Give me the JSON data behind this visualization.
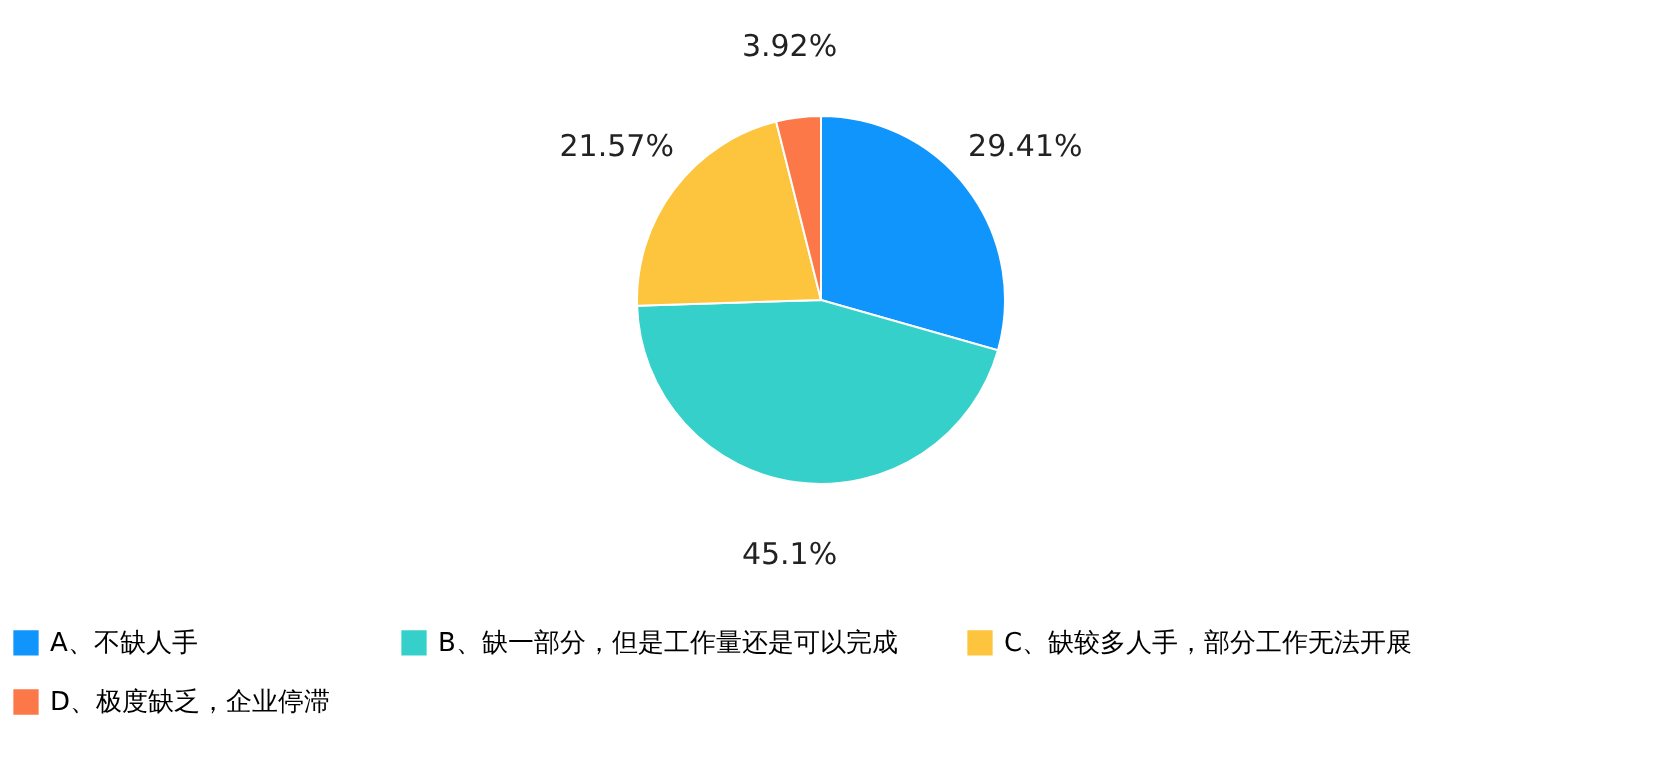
{
  "chart_data": {
    "type": "pie",
    "categories": [
      "A、不缺人手",
      "B、缺一部分，但是工作量还是可以完成",
      "C、缺较多人手，部分工作无法开展",
      "D、极度缺乏，企业停滞"
    ],
    "values": [
      29.41,
      45.1,
      21.57,
      3.92
    ],
    "colors": [
      "#0f95fc",
      "#36d0cb",
      "#fdc43d",
      "#fd7848"
    ],
    "value_labels": [
      "29.41%",
      "45.1%",
      "21.57%",
      "3.92%"
    ],
    "legend": "bottom"
  }
}
